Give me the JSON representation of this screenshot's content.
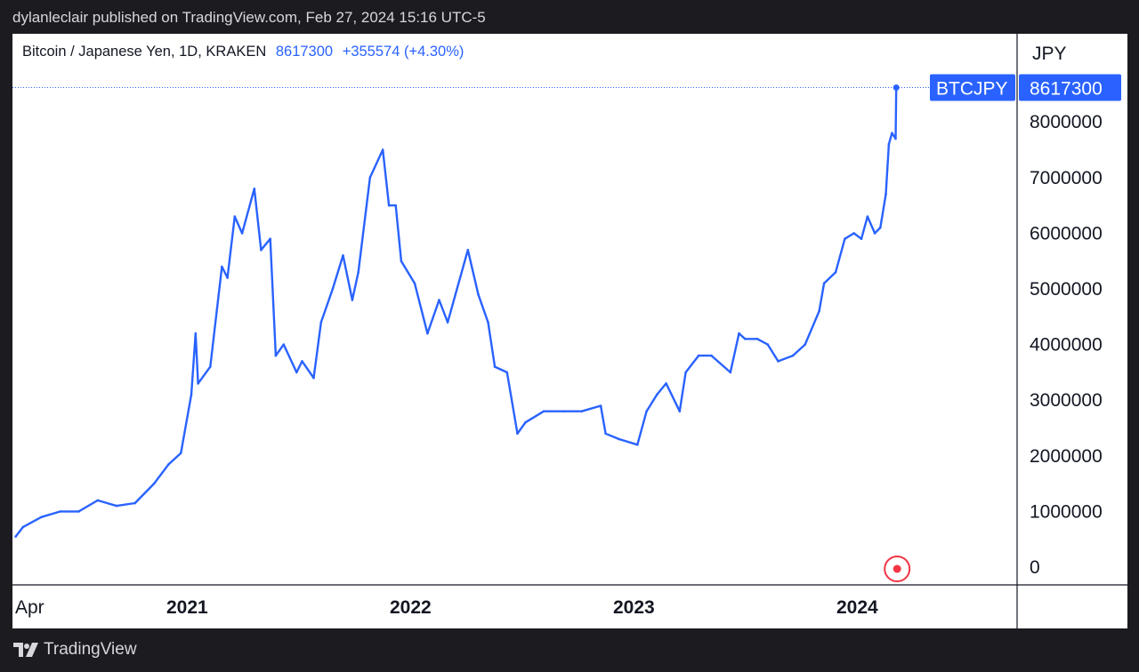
{
  "publish_info": "dylanleclair published on TradingView.com, Feb 27, 2024 15:16 UTC-5",
  "header": {
    "symbol_desc": "Bitcoin / Japanese Yen, 1D, KRAKEN",
    "last_price": "8617300",
    "change": "+355574 (+4.30%)"
  },
  "price_tag": {
    "symbol": "BTCJPY",
    "value": "8617300"
  },
  "footer": {
    "brand": "TradingView"
  },
  "colors": {
    "line": "#2962ff",
    "tag_bg": "#2962ff",
    "marker": "#f23645"
  },
  "chart_data": {
    "type": "line",
    "title": "Bitcoin / Japanese Yen, 1D, KRAKEN",
    "currency": "JPY",
    "ylim": [
      0,
      9000000
    ],
    "x_tick_labels": [
      "Apr",
      "2021",
      "2022",
      "2023",
      "2024"
    ],
    "x_tick_dates": [
      "2020-04-01",
      "2021-01-01",
      "2022-01-01",
      "2023-01-01",
      "2024-01-01"
    ],
    "y_tick_labels": [
      "0",
      "1000000",
      "2000000",
      "3000000",
      "4000000",
      "5000000",
      "6000000",
      "7000000",
      "8000000"
    ],
    "grid": false,
    "series": [
      {
        "name": "BTCJPY",
        "x": [
          "2020-03-20",
          "2020-04-01",
          "2020-05-01",
          "2020-06-01",
          "2020-07-01",
          "2020-08-01",
          "2020-09-01",
          "2020-10-01",
          "2020-11-01",
          "2020-11-25",
          "2020-12-15",
          "2021-01-01",
          "2021-01-08",
          "2021-01-12",
          "2021-02-01",
          "2021-02-20",
          "2021-03-01",
          "2021-03-13",
          "2021-03-25",
          "2021-04-14",
          "2021-04-25",
          "2021-05-10",
          "2021-05-19",
          "2021-06-01",
          "2021-06-22",
          "2021-07-01",
          "2021-07-20",
          "2021-08-01",
          "2021-08-20",
          "2021-09-06",
          "2021-09-21",
          "2021-10-01",
          "2021-10-20",
          "2021-11-10",
          "2021-11-20",
          "2021-12-01",
          "2021-12-10",
          "2022-01-01",
          "2022-01-22",
          "2022-02-10",
          "2022-02-24",
          "2022-03-29",
          "2022-04-15",
          "2022-05-01",
          "2022-05-12",
          "2022-06-01",
          "2022-06-18",
          "2022-07-01",
          "2022-07-31",
          "2022-09-01",
          "2022-10-01",
          "2022-11-01",
          "2022-11-09",
          "2022-12-01",
          "2022-12-31",
          "2023-01-15",
          "2023-02-01",
          "2023-02-16",
          "2023-03-10",
          "2023-03-20",
          "2023-04-10",
          "2023-05-01",
          "2023-06-01",
          "2023-06-15",
          "2023-06-25",
          "2023-07-15",
          "2023-08-01",
          "2023-08-18",
          "2023-09-11",
          "2023-10-01",
          "2023-10-24",
          "2023-11-01",
          "2023-11-20",
          "2023-12-05",
          "2023-12-20",
          "2024-01-01",
          "2024-01-11",
          "2024-01-23",
          "2024-02-01",
          "2024-02-10",
          "2024-02-15",
          "2024-02-20",
          "2024-02-26",
          "2024-02-27"
        ],
        "values": [
          550000,
          720000,
          900000,
          1000000,
          1000000,
          1200000,
          1100000,
          1150000,
          1500000,
          1850000,
          2050000,
          3100000,
          4200000,
          3300000,
          3600000,
          5400000,
          5200000,
          6300000,
          6000000,
          6800000,
          5700000,
          5900000,
          3800000,
          4000000,
          3500000,
          3700000,
          3400000,
          4400000,
          5000000,
          5600000,
          4800000,
          5300000,
          7000000,
          7500000,
          6500000,
          6500000,
          5500000,
          5100000,
          4200000,
          4800000,
          4400000,
          5700000,
          4900000,
          4400000,
          3600000,
          3500000,
          2400000,
          2600000,
          2800000,
          2800000,
          2800000,
          2900000,
          2400000,
          2300000,
          2200000,
          2800000,
          3100000,
          3300000,
          2800000,
          3500000,
          3800000,
          3800000,
          3500000,
          4200000,
          4100000,
          4100000,
          4000000,
          3700000,
          3800000,
          4000000,
          4600000,
          5100000,
          5300000,
          5900000,
          6000000,
          5900000,
          6300000,
          6000000,
          6100000,
          6700000,
          7600000,
          7800000,
          7700000,
          8617300
        ]
      }
    ],
    "last_value": 8617300
  }
}
